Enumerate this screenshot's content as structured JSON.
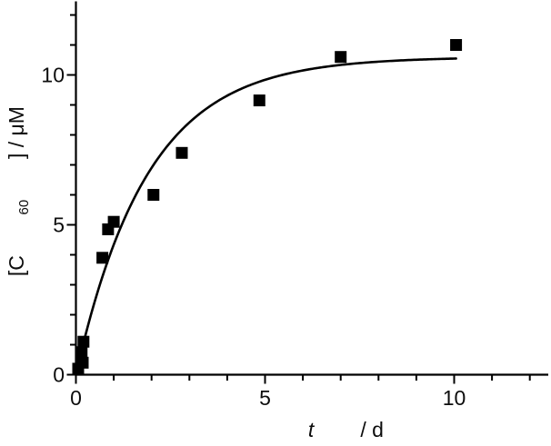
{
  "figure": {
    "background": "#ffffff",
    "ink_color": "#000000"
  },
  "chart_data": {
    "type": "scatter",
    "title": "",
    "xlabel": "t / d",
    "ylabel": "[C60] / μM",
    "xlabel_parts": {
      "italic": "t",
      "rest": " / d"
    },
    "ylabel_parts": {
      "prefix": "[C",
      "sub": "60",
      "suffix": "] / μM"
    },
    "xlim": [
      0,
      12.5
    ],
    "ylim": [
      0,
      12.5
    ],
    "x_major_ticks": [
      0,
      5,
      10
    ],
    "x_minor_step": 1,
    "y_major_ticks": [
      0,
      5,
      10
    ],
    "y_minor_step": 1,
    "grid": false,
    "legend": false,
    "marker_color": "#000000",
    "line_color": "#000000",
    "series": [
      {
        "name": "measured-concentration",
        "kind": "scatter",
        "marker": "filled-square",
        "points": [
          {
            "t": 0.06,
            "c": 0.2
          },
          {
            "t": 0.18,
            "c": 0.4
          },
          {
            "t": 0.15,
            "c": 0.75
          },
          {
            "t": 0.2,
            "c": 1.1
          },
          {
            "t": 0.7,
            "c": 3.9
          },
          {
            "t": 0.85,
            "c": 4.85
          },
          {
            "t": 1.0,
            "c": 5.1
          },
          {
            "t": 2.05,
            "c": 6.0
          },
          {
            "t": 2.8,
            "c": 7.4
          },
          {
            "t": 4.85,
            "c": 9.15
          },
          {
            "t": 7.0,
            "c": 10.6
          },
          {
            "t": 10.05,
            "c": 11.0
          }
        ]
      },
      {
        "name": "exponential-saturation-fit",
        "kind": "line",
        "model": "c(t) = A * (1 - exp(-t / tau))",
        "A": 10.6,
        "tau": 1.9,
        "t_range": [
          0,
          10.05
        ]
      }
    ]
  }
}
